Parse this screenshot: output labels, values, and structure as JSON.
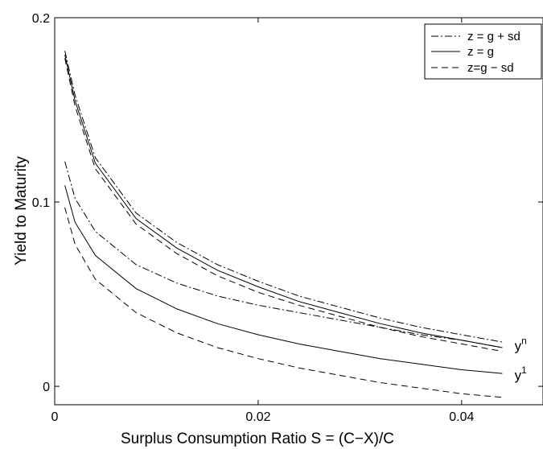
{
  "chart_data": {
    "type": "line",
    "xlabel": "Surplus Consumption Ratio S = (C−X)/C",
    "ylabel": "Yield to Maturity",
    "xlim": [
      0,
      0.048
    ],
    "ylim": [
      -0.01,
      0.2
    ],
    "x_ticks": [
      {
        "value": 0,
        "label": "0"
      },
      {
        "value": 0.02,
        "label": "0.02"
      },
      {
        "value": 0.04,
        "label": "0.04"
      }
    ],
    "y_ticks": [
      {
        "value": 0,
        "label": "0"
      },
      {
        "value": 0.1,
        "label": "0.1"
      },
      {
        "value": 0.2,
        "label": "0.2"
      }
    ],
    "grid": false,
    "legend": {
      "position": "top-right",
      "entries": [
        {
          "label": "z = g + sd",
          "style": "dashdot"
        },
        {
          "label": "z = g",
          "style": "solid"
        },
        {
          "label": "z=g − sd",
          "style": "dashed"
        }
      ]
    },
    "curve_labels": [
      {
        "base": "y",
        "sup": "n",
        "x": 0.0452,
        "y": 0.0195
      },
      {
        "base": "y",
        "sup": "1",
        "x": 0.0452,
        "y": 0.0035
      }
    ],
    "series": [
      {
        "group": "y^n",
        "style": "dashdot",
        "points": [
          [
            0.001,
            0.182
          ],
          [
            0.002,
            0.158
          ],
          [
            0.004,
            0.124
          ],
          [
            0.008,
            0.094
          ],
          [
            0.012,
            0.078
          ],
          [
            0.016,
            0.066
          ],
          [
            0.02,
            0.057
          ],
          [
            0.024,
            0.049
          ],
          [
            0.028,
            0.043
          ],
          [
            0.032,
            0.037
          ],
          [
            0.036,
            0.032
          ],
          [
            0.04,
            0.028
          ],
          [
            0.044,
            0.024
          ]
        ]
      },
      {
        "group": "y^n",
        "style": "solid",
        "points": [
          [
            0.001,
            0.18
          ],
          [
            0.002,
            0.155
          ],
          [
            0.004,
            0.121
          ],
          [
            0.008,
            0.091
          ],
          [
            0.012,
            0.075
          ],
          [
            0.016,
            0.063
          ],
          [
            0.02,
            0.054
          ],
          [
            0.024,
            0.046
          ],
          [
            0.028,
            0.04
          ],
          [
            0.032,
            0.034
          ],
          [
            0.036,
            0.029
          ],
          [
            0.04,
            0.025
          ],
          [
            0.044,
            0.021
          ]
        ]
      },
      {
        "group": "y^n",
        "style": "dashed",
        "points": [
          [
            0.001,
            0.178
          ],
          [
            0.002,
            0.152
          ],
          [
            0.004,
            0.118
          ],
          [
            0.008,
            0.088
          ],
          [
            0.012,
            0.072
          ],
          [
            0.016,
            0.06
          ],
          [
            0.02,
            0.051
          ],
          [
            0.024,
            0.044
          ],
          [
            0.028,
            0.038
          ],
          [
            0.032,
            0.032
          ],
          [
            0.036,
            0.027
          ],
          [
            0.04,
            0.023
          ],
          [
            0.044,
            0.019
          ]
        ]
      },
      {
        "group": "y^1",
        "style": "dashdot",
        "points": [
          [
            0.001,
            0.122
          ],
          [
            0.002,
            0.102
          ],
          [
            0.004,
            0.084
          ],
          [
            0.008,
            0.066
          ],
          [
            0.012,
            0.056
          ],
          [
            0.016,
            0.049
          ],
          [
            0.02,
            0.044
          ],
          [
            0.024,
            0.04
          ],
          [
            0.028,
            0.036
          ],
          [
            0.032,
            0.032
          ],
          [
            0.036,
            0.028
          ],
          [
            0.04,
            0.025
          ],
          [
            0.044,
            0.021
          ]
        ]
      },
      {
        "group": "y^1",
        "style": "solid",
        "points": [
          [
            0.001,
            0.109
          ],
          [
            0.002,
            0.089
          ],
          [
            0.004,
            0.071
          ],
          [
            0.008,
            0.053
          ],
          [
            0.012,
            0.042
          ],
          [
            0.016,
            0.034
          ],
          [
            0.02,
            0.028
          ],
          [
            0.024,
            0.023
          ],
          [
            0.028,
            0.019
          ],
          [
            0.032,
            0.015
          ],
          [
            0.036,
            0.012
          ],
          [
            0.04,
            0.009
          ],
          [
            0.044,
            0.007
          ]
        ]
      },
      {
        "group": "y^1",
        "style": "dashed",
        "points": [
          [
            0.001,
            0.097
          ],
          [
            0.002,
            0.077
          ],
          [
            0.004,
            0.058
          ],
          [
            0.008,
            0.04
          ],
          [
            0.012,
            0.029
          ],
          [
            0.016,
            0.021
          ],
          [
            0.02,
            0.015
          ],
          [
            0.024,
            0.01
          ],
          [
            0.028,
            0.006
          ],
          [
            0.032,
            0.002
          ],
          [
            0.036,
            -0.001
          ],
          [
            0.04,
            -0.004
          ],
          [
            0.044,
            -0.006
          ]
        ]
      }
    ]
  }
}
